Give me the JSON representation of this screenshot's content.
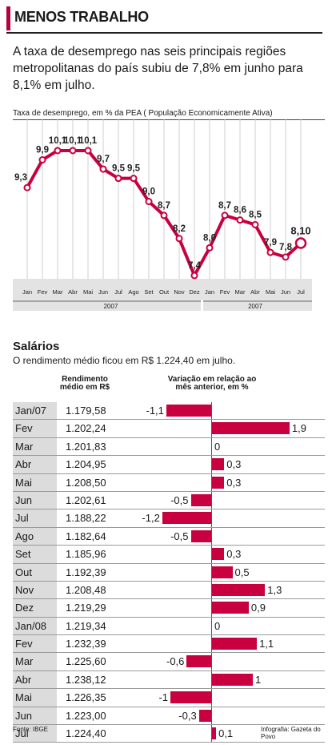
{
  "header": {
    "title": "MENOS TRABALHO",
    "lead": "A taxa de desemprego nas seis principais regiões metropolitanas do país subiu de 7,8% em junho para 8,1% em julho."
  },
  "chart_data": [
    {
      "type": "line",
      "title": "Taxa de desemprego, em % da PEA ( População Economicamente Ativa)",
      "categories": [
        "Jan",
        "Fev",
        "Mar",
        "Abr",
        "Mai",
        "Jun",
        "Jul",
        "Ago",
        "Set",
        "Out",
        "Nov",
        "Dez",
        "Jan",
        "Fev",
        "Mar",
        "Abr",
        "Mai",
        "Jun",
        "Jul"
      ],
      "year_labels": [
        "2007",
        "2007"
      ],
      "labels": [
        "9,3",
        "9,9",
        "10,1",
        "10,1",
        "10,1",
        "9,7",
        "9,5",
        "9,5",
        "9,0",
        "8,7",
        "8,2",
        "7,4",
        "8,0",
        "8,7",
        "8,6",
        "8,5",
        "7,9",
        "7,8",
        "8,10"
      ],
      "values": [
        9.3,
        9.9,
        10.1,
        10.1,
        10.1,
        9.7,
        9.5,
        9.5,
        9.0,
        8.7,
        8.2,
        7.4,
        8.0,
        8.7,
        8.6,
        8.5,
        7.9,
        7.8,
        8.1
      ],
      "color": "#c8003f"
    },
    {
      "type": "bar",
      "title": "Salários",
      "subtitle": "O rendimento médio ficou em R$ 1.224,40 em julho.",
      "col_income": "Rendimento médio em R$",
      "col_variation": "Variação em relação ao mês anterior, em %",
      "months": [
        "Jan/07",
        "Fev",
        "Mar",
        "Abr",
        "Mai",
        "Jun",
        "Jul",
        "Ago",
        "Set",
        "Out",
        "Nov",
        "Dez",
        "Jan/08",
        "Fev",
        "Mar",
        "Abr",
        "Mai",
        "Jun",
        "Jul"
      ],
      "income": [
        "1.179,58",
        "1.202,24",
        "1.201,83",
        "1.204,95",
        "1.208,50",
        "1.202,61",
        "1.188,22",
        "1.182,64",
        "1.185,96",
        "1.192,39",
        "1.208,48",
        "1.219,29",
        "1.219,34",
        "1.232,39",
        "1.225,60",
        "1.238,12",
        "1.226,35",
        "1.223,00",
        "1.224,40"
      ],
      "variation_labels": [
        "-1,1",
        "1,9",
        "0",
        "0,3",
        "0,3",
        "-0,5",
        "-1,2",
        "-0,5",
        "0,3",
        "0,5",
        "1,3",
        "0,9",
        "0",
        "1,1",
        "-0,6",
        "1",
        "-1",
        "-0,3",
        "0,1"
      ],
      "variation": [
        -1.1,
        1.9,
        0,
        0.3,
        0.3,
        -0.5,
        -1.2,
        -0.5,
        0.3,
        0.5,
        1.3,
        0.9,
        0,
        1.1,
        -0.6,
        1.0,
        -1.0,
        -0.3,
        0.1
      ],
      "color": "#c8003f"
    }
  ],
  "footer": {
    "source": "Fonte: IBGE",
    "credit": "Infografia: Gazeta do Povo"
  }
}
